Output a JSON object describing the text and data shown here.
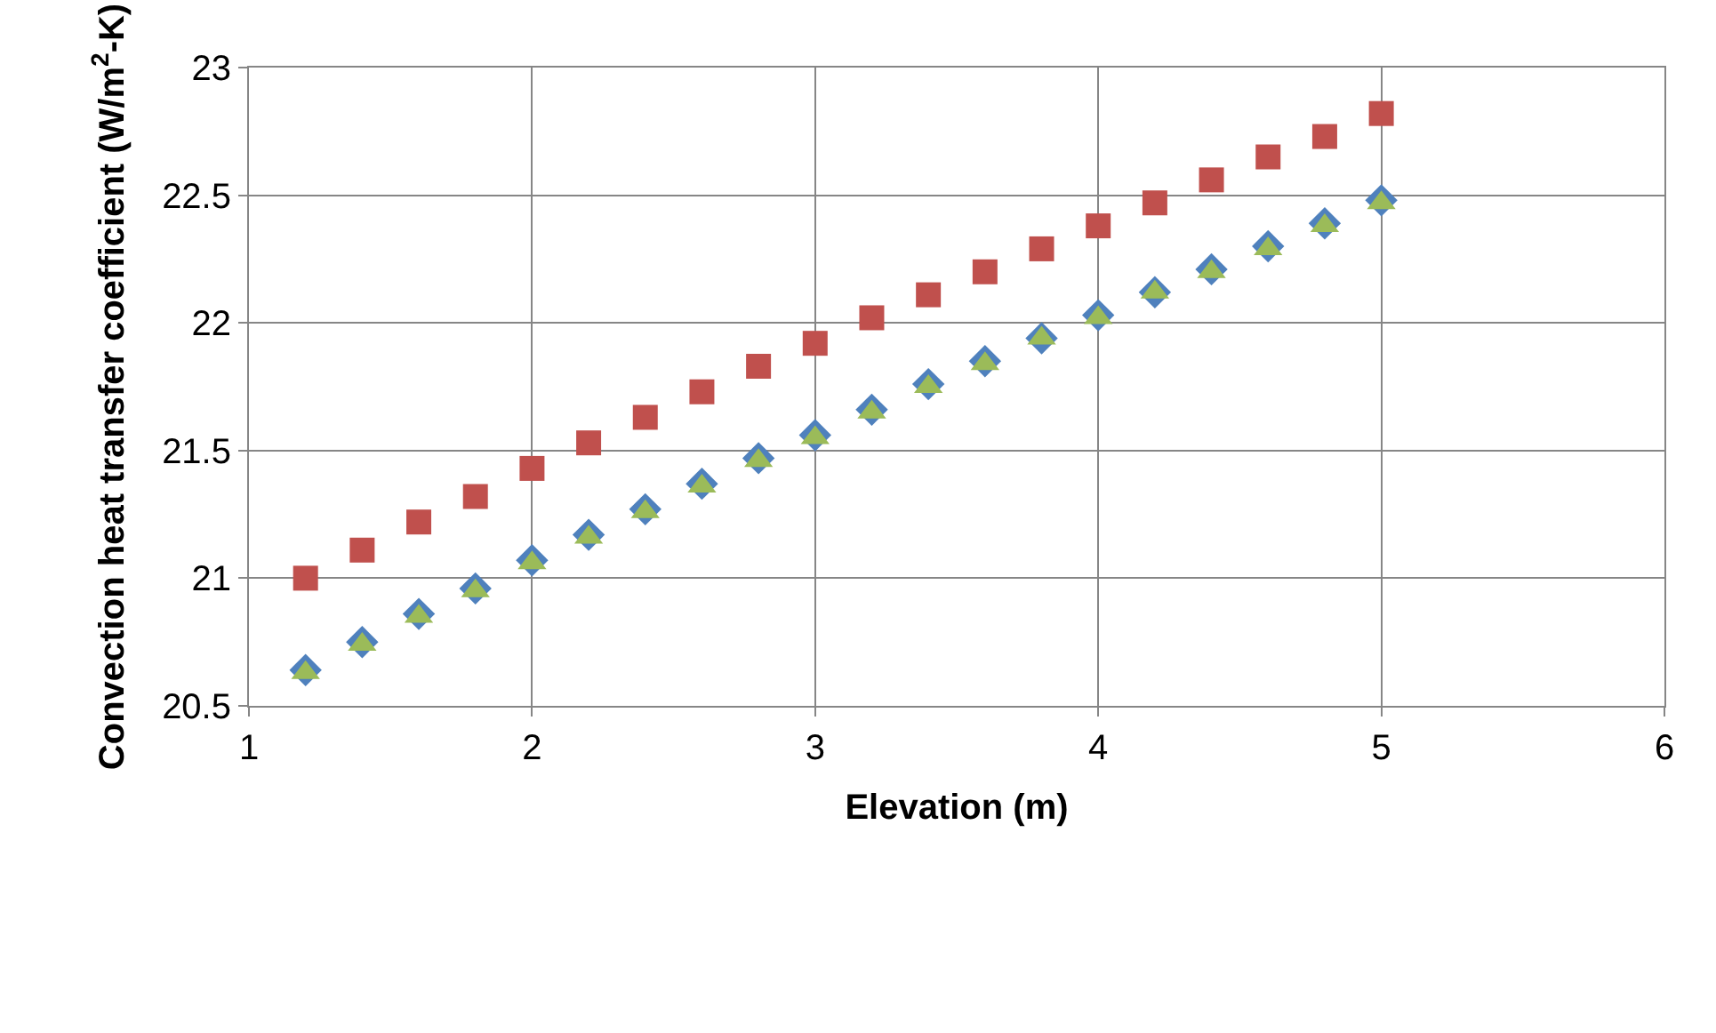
{
  "chart_data": {
    "type": "scatter",
    "xlabel": "Elevation (m)",
    "ylabel": "Convection heat transfer coefficient (W/m$^{2}$-K)",
    "xlim": [
      1,
      6
    ],
    "xticks": [
      1,
      2,
      3,
      4,
      5,
      6
    ],
    "ylim": [
      20.5,
      23
    ],
    "yticks": [
      20.5,
      21,
      21.5,
      22,
      22.5,
      23
    ],
    "grid": true,
    "x": [
      1.2,
      1.4,
      1.6,
      1.8,
      2.0,
      2.2,
      2.4,
      2.6,
      2.8,
      3.0,
      3.2,
      3.4,
      3.6,
      3.8,
      4.0,
      4.2,
      4.4,
      4.6,
      4.8,
      5.0
    ],
    "series": [
      {
        "color": "#4f81bd",
        "marker": "diamond",
        "values": [
          20.64,
          20.75,
          20.86,
          20.96,
          21.07,
          21.17,
          21.27,
          21.37,
          21.47,
          21.56,
          21.66,
          21.76,
          21.85,
          21.94,
          22.03,
          22.12,
          22.21,
          22.3,
          22.39,
          22.48
        ]
      },
      {
        "color": "#c0504d",
        "marker": "square",
        "values": [
          21.0,
          21.11,
          21.22,
          21.32,
          21.43,
          21.53,
          21.63,
          21.73,
          21.83,
          21.92,
          22.02,
          22.11,
          22.2,
          22.29,
          22.38,
          22.47,
          22.56,
          22.65,
          22.73,
          22.82
        ]
      },
      {
        "color": "#9bbb59",
        "marker": "triangle",
        "values": [
          20.63,
          20.74,
          20.85,
          20.95,
          21.06,
          21.16,
          21.26,
          21.36,
          21.46,
          21.55,
          21.65,
          21.75,
          21.84,
          21.94,
          22.02,
          22.12,
          22.2,
          22.29,
          22.38,
          22.47
        ]
      }
    ]
  }
}
